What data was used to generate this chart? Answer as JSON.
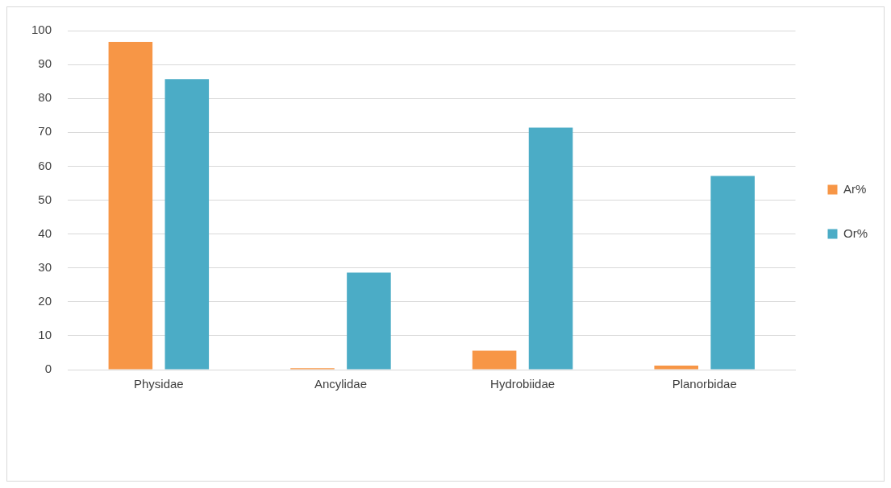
{
  "chart_data": {
    "type": "bar",
    "categories": [
      "Physidae",
      "Ancylidae",
      "Hydrobiidae",
      "Planorbidae"
    ],
    "series": [
      {
        "name": "Ar%",
        "color": "#f79646",
        "values": [
          96.7,
          0.4,
          5.6,
          1.2
        ]
      },
      {
        "name": "Or%",
        "color": "#4bacc6",
        "values": [
          85.7,
          28.6,
          71.4,
          57.1
        ]
      }
    ],
    "ylim": [
      0,
      100
    ],
    "yticks": [
      0,
      10,
      20,
      30,
      40,
      50,
      60,
      70,
      80,
      90,
      100
    ],
    "grid": "y",
    "legend": "right"
  }
}
